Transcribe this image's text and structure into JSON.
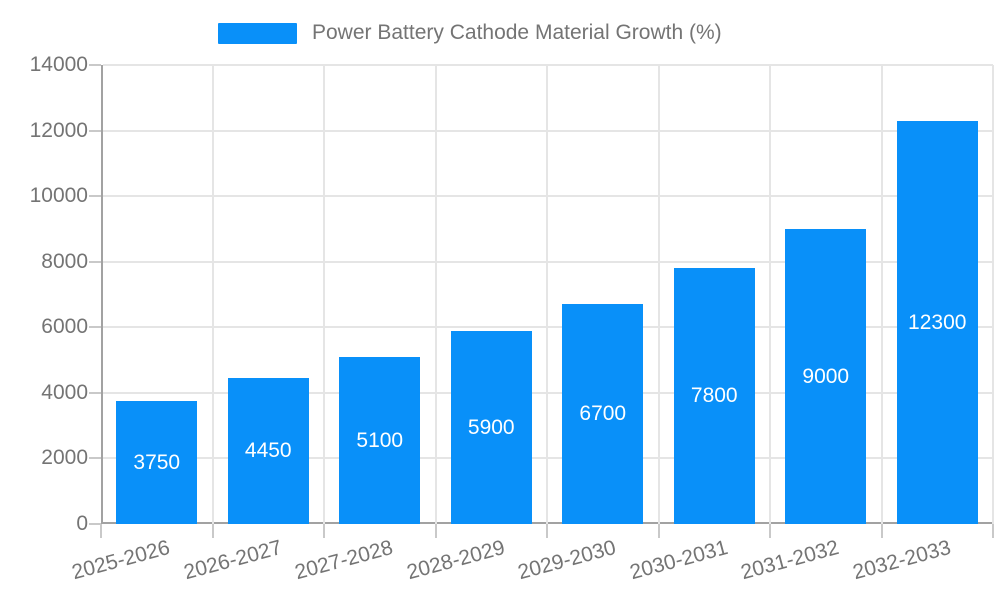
{
  "chart_data": {
    "type": "bar",
    "title": "Power Battery Cathode Material Growth (%)",
    "series_name": "Power Battery Cathode Material Growth (%)",
    "categories": [
      "2025-2026",
      "2026-2027",
      "2027-2028",
      "2028-2029",
      "2029-2030",
      "2030-2031",
      "2031-2032",
      "2032-2033"
    ],
    "values": [
      3750,
      4450,
      5100,
      5900,
      6700,
      7800,
      9000,
      12300
    ],
    "xlabel": "",
    "ylabel": "",
    "ylim": [
      0,
      14000
    ],
    "yticks": [
      0,
      2000,
      4000,
      6000,
      8000,
      10000,
      12000,
      14000
    ],
    "grid": "on",
    "legend_position": "top",
    "bar_color": "#0990f9",
    "value_label_color": "#ffffff"
  }
}
